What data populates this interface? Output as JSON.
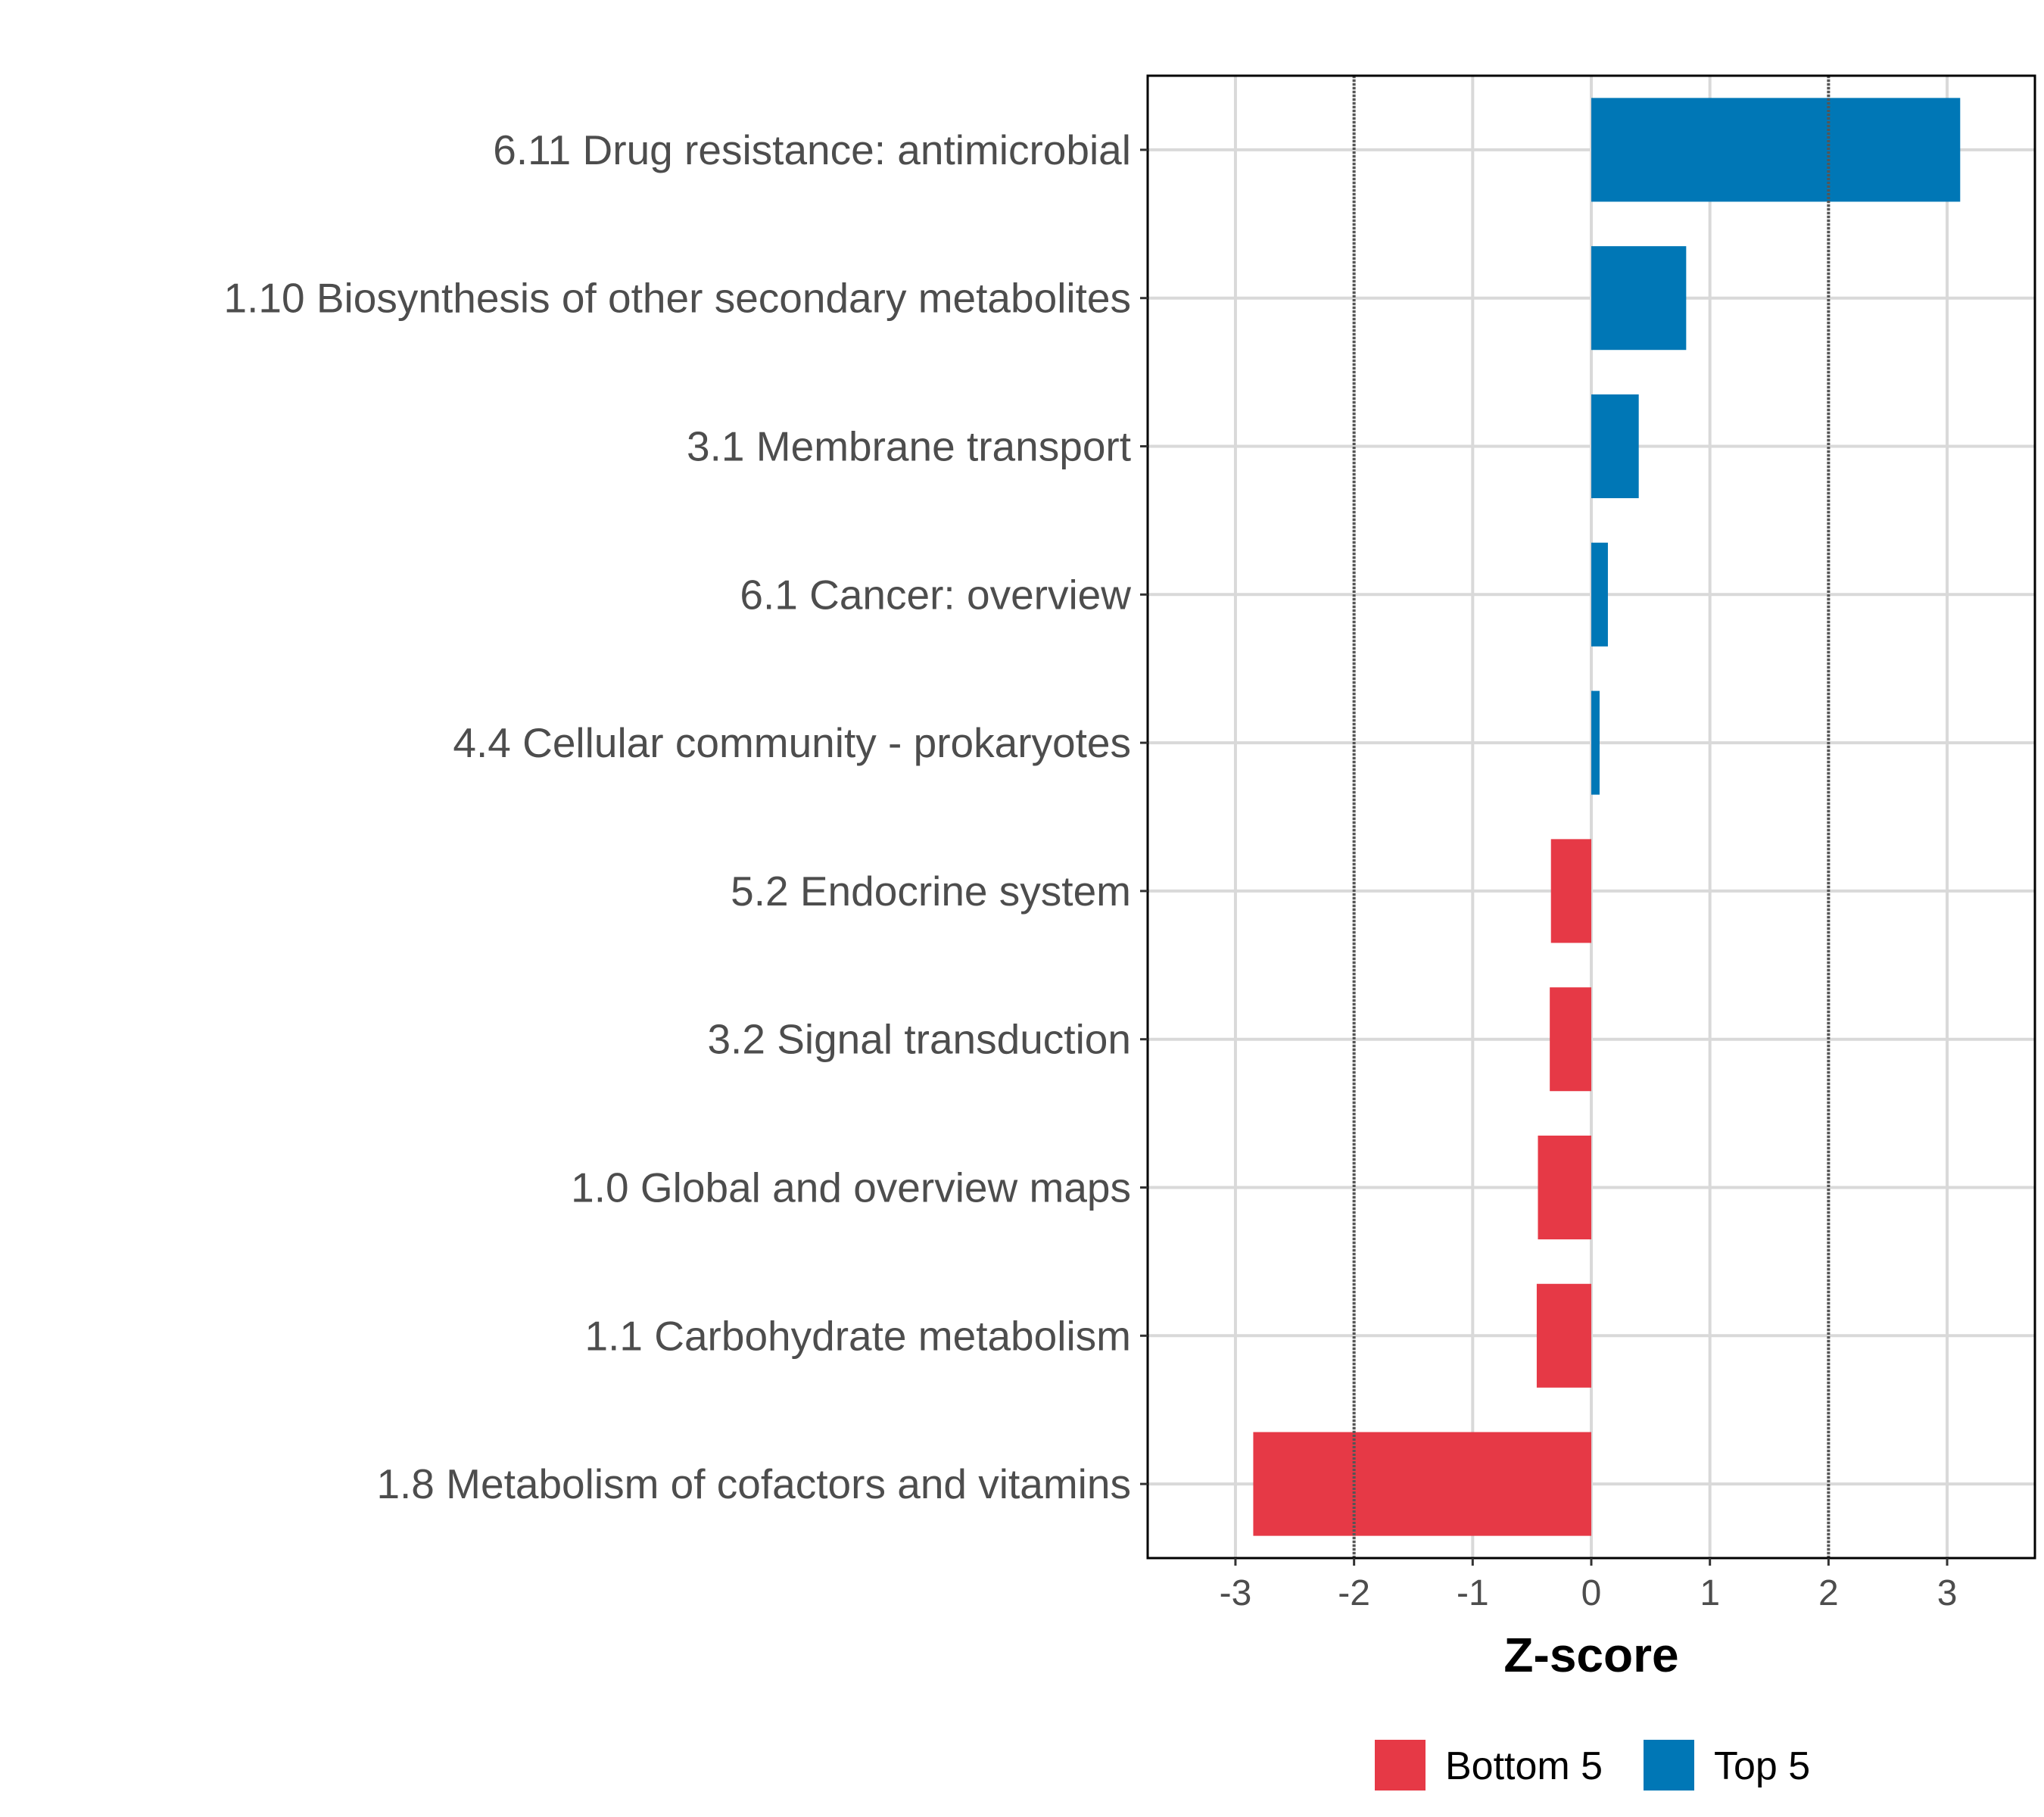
{
  "chart_data": {
    "type": "bar",
    "orientation": "horizontal",
    "categories": [
      "6.11 Drug resistance: antimicrobial",
      "1.10 Biosynthesis of other secondary metabolites",
      "3.1 Membrane transport",
      "6.1 Cancer: overview",
      "4.4 Cellular community - prokaryotes",
      "5.2 Endocrine system",
      "3.2 Signal transduction",
      "1.0 Global and overview maps",
      "1.1 Carbohydrate metabolism",
      "1.8 Metabolism of cofactors and vitamins"
    ],
    "values": [
      3.11,
      0.8,
      0.4,
      0.14,
      0.07,
      -0.34,
      -0.35,
      -0.45,
      -0.46,
      -2.85
    ],
    "groups": [
      "Top 5",
      "Top 5",
      "Top 5",
      "Top 5",
      "Top 5",
      "Bottom 5",
      "Bottom 5",
      "Bottom 5",
      "Bottom 5",
      "Bottom 5"
    ],
    "xlabel": "Z-score",
    "ylabel": "",
    "xlim": [
      -3.74,
      3.74
    ],
    "xticks": [
      -3,
      -2,
      -1,
      0,
      1,
      2,
      3
    ],
    "reference_lines": [
      -2,
      2
    ],
    "grid": true,
    "legend": {
      "position": "bottom",
      "entries": [
        {
          "label": "Bottom 5",
          "color": "#E63946"
        },
        {
          "label": "Top 5",
          "color": "#0077B6"
        }
      ]
    }
  }
}
